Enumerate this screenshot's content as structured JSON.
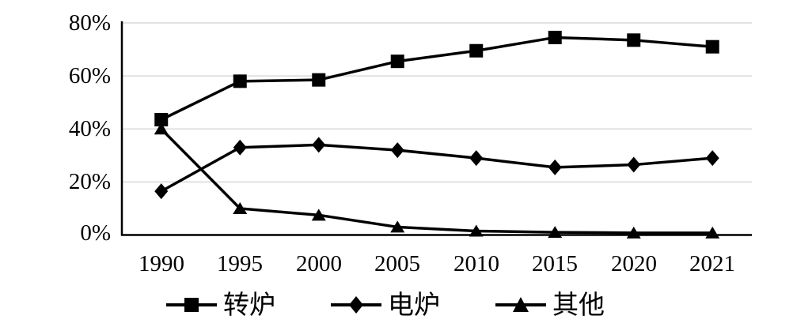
{
  "chart_data": {
    "type": "line",
    "title": "",
    "categories": [
      "1990",
      "1995",
      "2000",
      "2005",
      "2010",
      "2015",
      "2020",
      "2021"
    ],
    "series": [
      {
        "name": "转炉",
        "marker": "square",
        "values": [
          43.5,
          58.0,
          58.5,
          65.5,
          69.5,
          74.5,
          73.5,
          71.0
        ]
      },
      {
        "name": "电炉",
        "marker": "diamond",
        "values": [
          16.5,
          33.0,
          34.0,
          32.0,
          29.0,
          25.5,
          26.5,
          29.0
        ]
      },
      {
        "name": "其他",
        "marker": "triangle",
        "values": [
          40.0,
          10.0,
          7.5,
          3.0,
          1.5,
          1.0,
          0.8,
          0.8
        ]
      }
    ],
    "ytick_labels": [
      "80%",
      "60%",
      "40%",
      "20%",
      "0%"
    ],
    "yticks": [
      80,
      60,
      40,
      20,
      0
    ],
    "ylim": [
      0,
      80
    ],
    "grid": true,
    "legend_position": "bottom",
    "colors": {
      "series": "#000000",
      "gridline": "#d9d9d9",
      "axis": "#000000",
      "background": "#ffffff",
      "text": "#000000"
    }
  }
}
